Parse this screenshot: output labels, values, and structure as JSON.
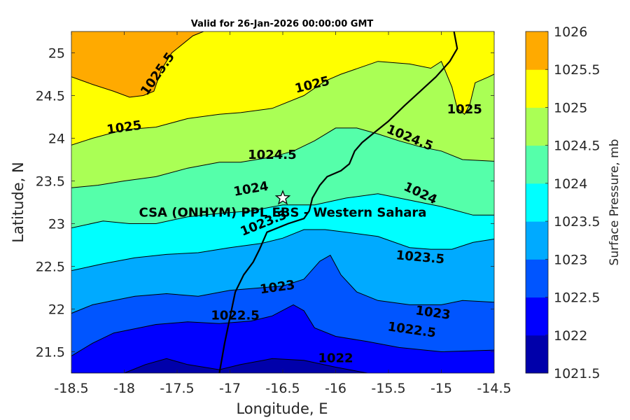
{
  "chart_data": {
    "type": "heatmap",
    "subtype": "filled-contour",
    "title": "Valid for 26-Jan-2026 00:00:00 GMT",
    "xlabel": "Longitude, E",
    "ylabel": "Latitude, N",
    "xlim": [
      -18.5,
      -14.5
    ],
    "ylim": [
      21.25,
      25.25
    ],
    "xticks": [
      "-18.5",
      "-18",
      "-17.5",
      "-17",
      "-16.5",
      "-16",
      "-15.5",
      "-15",
      "-14.5"
    ],
    "yticks": [
      "21.5",
      "22",
      "22.5",
      "23",
      "23.5",
      "24",
      "24.5",
      "25"
    ],
    "grid": false,
    "colorbar": {
      "label": "Surface Pressure, mb",
      "levels": [
        1021.5,
        1022,
        1022.5,
        1023,
        1023.5,
        1024,
        1024.5,
        1025,
        1025.5,
        1026
      ],
      "tick_labels": [
        "1021.5",
        "1022",
        "1022.5",
        "1023",
        "1023.5",
        "1024",
        "1024.5",
        "1025",
        "1025.5",
        "1026"
      ],
      "colors": [
        "#0000aa",
        "#0000ff",
        "#0055ff",
        "#00aaff",
        "#00ffff",
        "#55ffaa",
        "#aaff55",
        "#ffff00",
        "#ffaa00",
        "#ff5500"
      ]
    },
    "contours": [
      {
        "level": 1022,
        "points": [
          [
            -18.5,
            21.25
          ],
          [
            -18,
            21.25
          ],
          [
            -17.8,
            21.35
          ],
          [
            -17.6,
            21.42
          ],
          [
            -17.4,
            21.35
          ],
          [
            -17.1,
            21.29
          ],
          [
            -16.9,
            21.35
          ],
          [
            -16.6,
            21.42
          ],
          [
            -16.3,
            21.4
          ],
          [
            -16.0,
            21.32
          ],
          [
            -15.7,
            21.25
          ]
        ]
      },
      {
        "level": 1022.5,
        "points": [
          [
            -18.5,
            21.45
          ],
          [
            -18.3,
            21.6
          ],
          [
            -18.1,
            21.72
          ],
          [
            -17.9,
            21.77
          ],
          [
            -17.7,
            21.82
          ],
          [
            -17.4,
            21.85
          ],
          [
            -17.1,
            21.83
          ],
          [
            -16.8,
            21.86
          ],
          [
            -16.6,
            21.92
          ],
          [
            -16.4,
            22.05
          ],
          [
            -16.3,
            21.98
          ],
          [
            -16.2,
            21.78
          ],
          [
            -16.0,
            21.68
          ],
          [
            -15.7,
            21.62
          ],
          [
            -15.4,
            21.55
          ],
          [
            -15.0,
            21.5
          ],
          [
            -14.5,
            21.52
          ]
        ]
      },
      {
        "level": 1023,
        "points": [
          [
            -18.5,
            21.95
          ],
          [
            -18.3,
            22.05
          ],
          [
            -18.1,
            22.1
          ],
          [
            -17.9,
            22.15
          ],
          [
            -17.6,
            22.18
          ],
          [
            -17.3,
            22.15
          ],
          [
            -17.0,
            22.22
          ],
          [
            -16.7,
            22.25
          ],
          [
            -16.5,
            22.27
          ],
          [
            -16.3,
            22.35
          ],
          [
            -16.15,
            22.56
          ],
          [
            -16.05,
            22.63
          ],
          [
            -15.95,
            22.4
          ],
          [
            -15.8,
            22.2
          ],
          [
            -15.6,
            22.1
          ],
          [
            -15.3,
            22.05
          ],
          [
            -15.0,
            22.05
          ],
          [
            -14.8,
            22.1
          ],
          [
            -14.5,
            22.08
          ]
        ]
      },
      {
        "level": 1023.5,
        "points": [
          [
            -18.5,
            22.45
          ],
          [
            -18.2,
            22.53
          ],
          [
            -17.9,
            22.6
          ],
          [
            -17.6,
            22.64
          ],
          [
            -17.3,
            22.66
          ],
          [
            -17.0,
            22.72
          ],
          [
            -16.7,
            22.77
          ],
          [
            -16.5,
            22.83
          ],
          [
            -16.3,
            22.93
          ],
          [
            -16.1,
            22.93
          ],
          [
            -15.9,
            22.9
          ],
          [
            -15.6,
            22.85
          ],
          [
            -15.3,
            22.72
          ],
          [
            -15.1,
            22.7
          ],
          [
            -14.9,
            22.7
          ],
          [
            -14.7,
            22.78
          ],
          [
            -14.5,
            22.82
          ]
        ]
      },
      {
        "level": 1024,
        "points": [
          [
            -18.5,
            22.95
          ],
          [
            -18.2,
            23.03
          ],
          [
            -17.95,
            23.0
          ],
          [
            -17.7,
            23.0
          ],
          [
            -17.4,
            23.08
          ],
          [
            -17.1,
            23.12
          ],
          [
            -16.8,
            23.15
          ],
          [
            -16.5,
            23.22
          ],
          [
            -16.2,
            23.22
          ],
          [
            -15.9,
            23.3
          ],
          [
            -15.6,
            23.35
          ],
          [
            -15.4,
            23.3
          ],
          [
            -15.2,
            23.25
          ],
          [
            -15.0,
            23.2
          ],
          [
            -14.7,
            23.1
          ],
          [
            -14.5,
            23.1
          ]
        ]
      },
      {
        "level": 1024.5,
        "points": [
          [
            -18.5,
            23.42
          ],
          [
            -18.25,
            23.45
          ],
          [
            -18.0,
            23.5
          ],
          [
            -17.7,
            23.55
          ],
          [
            -17.4,
            23.65
          ],
          [
            -17.1,
            23.72
          ],
          [
            -16.9,
            23.72
          ],
          [
            -16.6,
            23.78
          ],
          [
            -16.4,
            23.85
          ],
          [
            -16.2,
            23.97
          ],
          [
            -16.0,
            24.12
          ],
          [
            -15.8,
            24.12
          ],
          [
            -15.6,
            24.05
          ],
          [
            -15.4,
            23.97
          ],
          [
            -15.2,
            23.9
          ],
          [
            -15.0,
            23.85
          ],
          [
            -14.8,
            23.75
          ],
          [
            -14.5,
            23.73
          ]
        ]
      },
      {
        "level": 1025,
        "points": [
          [
            -18.5,
            23.92
          ],
          [
            -18.3,
            24.0
          ],
          [
            -18.0,
            24.1
          ],
          [
            -17.7,
            24.13
          ],
          [
            -17.4,
            24.23
          ],
          [
            -17.1,
            24.28
          ],
          [
            -16.9,
            24.3
          ],
          [
            -16.6,
            24.35
          ],
          [
            -16.3,
            24.5
          ],
          [
            -16.1,
            24.67
          ],
          [
            -15.95,
            24.75
          ],
          [
            -15.6,
            24.9
          ],
          [
            -15.3,
            24.87
          ],
          [
            -15.1,
            24.82
          ],
          [
            -15.0,
            24.9
          ],
          [
            -14.9,
            24.6
          ],
          [
            -14.85,
            24.35
          ],
          [
            -14.78,
            24.28
          ],
          [
            -14.73,
            24.4
          ],
          [
            -14.68,
            24.65
          ],
          [
            -14.55,
            24.72
          ],
          [
            -14.5,
            24.75
          ]
        ]
      },
      {
        "level": 1025.5,
        "points": [
          [
            -18.5,
            24.72
          ],
          [
            -18.3,
            24.63
          ],
          [
            -18.1,
            24.55
          ],
          [
            -17.95,
            24.48
          ],
          [
            -17.82,
            24.5
          ],
          [
            -17.72,
            24.55
          ],
          [
            -17.65,
            24.8
          ],
          [
            -17.55,
            25.0
          ],
          [
            -17.35,
            25.2
          ],
          [
            -17.25,
            25.25
          ]
        ]
      }
    ],
    "contour_labels": [
      "1025.5",
      "1025",
      "1025",
      "1025",
      "1024.5",
      "1024.5",
      "1024",
      "1024",
      "1023.5",
      "1023.5",
      "1023",
      "1023",
      "1022.5",
      "1022.5",
      "1022"
    ],
    "coastline": [
      [
        -17.1,
        21.25
      ],
      [
        -17.05,
        21.6
      ],
      [
        -17.0,
        21.9
      ],
      [
        -16.95,
        22.2
      ],
      [
        -16.87,
        22.4
      ],
      [
        -16.78,
        22.55
      ],
      [
        -16.72,
        22.7
      ],
      [
        -16.65,
        22.9
      ],
      [
        -16.45,
        23.0
      ],
      [
        -16.3,
        23.06
      ],
      [
        -16.25,
        23.15
      ],
      [
        -16.22,
        23.3
      ],
      [
        -16.15,
        23.45
      ],
      [
        -16.08,
        23.55
      ],
      [
        -15.95,
        23.62
      ],
      [
        -15.87,
        23.7
      ],
      [
        -15.82,
        23.85
      ],
      [
        -15.75,
        23.95
      ],
      [
        -15.65,
        24.05
      ],
      [
        -15.5,
        24.2
      ],
      [
        -15.35,
        24.38
      ],
      [
        -15.2,
        24.55
      ],
      [
        -15.05,
        24.72
      ],
      [
        -14.92,
        24.9
      ],
      [
        -14.85,
        25.05
      ],
      [
        -14.88,
        25.25
      ]
    ],
    "site": {
      "name": "CSA (ONHYM) PPL EBS - Western Sahara",
      "lon": -16.5,
      "lat": 23.3
    }
  }
}
